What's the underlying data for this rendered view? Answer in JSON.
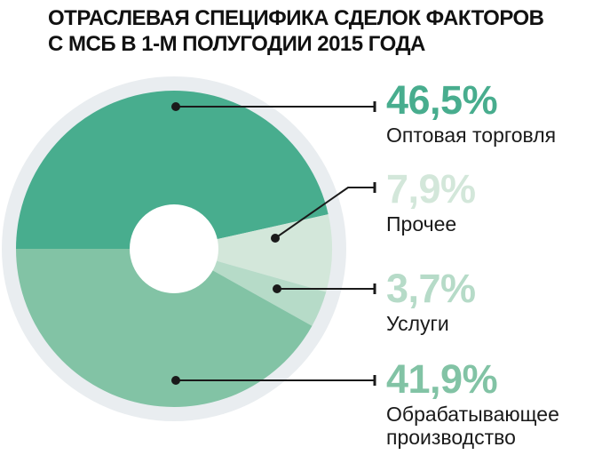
{
  "title": {
    "line1": "ОТРАСЛЕВАЯ СПЕЦИФИКА СДЕЛОК ФАКТОРОВ",
    "line2": "С МСБ В 1-М ПОЛУГОДИИ 2015 ГОДА"
  },
  "chart_data": {
    "type": "pie",
    "title": "Отраслевая специфика сделок факторов с МСБ в 1-м полугодии 2015 года",
    "donut": true,
    "start_angle_deg": 180,
    "direction": "clockwise",
    "total": 100,
    "segments": [
      {
        "label": "Оптовая торговля",
        "value": 46.5,
        "display": "46,5%",
        "color": "#48ad8e"
      },
      {
        "label": "Прочее",
        "value": 7.9,
        "display": "7,9%",
        "color": "#d3e7da"
      },
      {
        "label": "Услуги",
        "value": 3.7,
        "display": "3,7%",
        "color": "#b6dbc8"
      },
      {
        "label": "Обрабатывающее производство",
        "value": 41.9,
        "display": "41,9%",
        "color": "#82c3a5"
      }
    ],
    "ring_color": "#e9edf0",
    "hole_color": "#ffffff",
    "leader_line_color": "#1a1a1a",
    "legend_position": "right"
  }
}
